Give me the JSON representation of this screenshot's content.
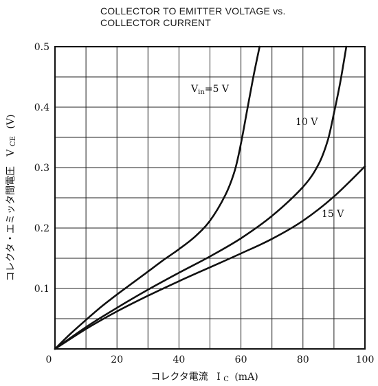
{
  "chart_data": {
    "type": "line",
    "title_lines": [
      "COLLECTOR TO EMITTER VOLTAGE vs.",
      "COLLECTOR CURRENT"
    ],
    "xlabel": {
      "text": "コレクタ電流",
      "symbol": "I",
      "subscript": "C",
      "unit": "(mA)"
    },
    "ylabel": {
      "text": "コレクタ・エミッタ間電圧",
      "symbol": "V",
      "subscript": "CE",
      "unit": "(V)"
    },
    "xlim": [
      0,
      100
    ],
    "ylim": [
      0,
      0.5
    ],
    "x_ticks": [
      0,
      20,
      40,
      60,
      80,
      100
    ],
    "x_tick_labels": [
      "0",
      "20",
      "40",
      "60",
      "80",
      "100"
    ],
    "y_ticks": [
      0.1,
      0.2,
      0.3,
      0.4,
      0.5
    ],
    "y_tick_labels": [
      "0.1",
      "0.2",
      "0.3",
      "0.4",
      "0.5"
    ],
    "y_origin_label": "0",
    "x_grid_step": 10,
    "y_grid_step": 0.05,
    "grid": true,
    "legend": "inline labels next to curves",
    "line_color": "#111111",
    "series": [
      {
        "label": "V_in=5 V",
        "label_parts": {
          "base": "V",
          "sub": "in",
          "rest": "=5 V"
        },
        "points": [
          [
            0,
            0
          ],
          [
            5,
            0.025
          ],
          [
            10,
            0.048
          ],
          [
            15,
            0.07
          ],
          [
            20,
            0.09
          ],
          [
            25,
            0.109
          ],
          [
            30,
            0.128
          ],
          [
            35,
            0.147
          ],
          [
            40,
            0.165
          ],
          [
            45,
            0.185
          ],
          [
            50,
            0.212
          ],
          [
            55,
            0.255
          ],
          [
            58,
            0.295
          ],
          [
            60,
            0.34
          ],
          [
            62,
            0.395
          ],
          [
            64,
            0.45
          ],
          [
            66,
            0.5
          ]
        ]
      },
      {
        "label": "10 V",
        "label_parts": {
          "base": "10 V",
          "sub": "",
          "rest": ""
        },
        "points": [
          [
            0,
            0
          ],
          [
            10,
            0.036
          ],
          [
            20,
            0.068
          ],
          [
            30,
            0.098
          ],
          [
            40,
            0.126
          ],
          [
            50,
            0.153
          ],
          [
            60,
            0.183
          ],
          [
            70,
            0.22
          ],
          [
            80,
            0.268
          ],
          [
            85,
            0.305
          ],
          [
            88,
            0.345
          ],
          [
            90,
            0.39
          ],
          [
            92,
            0.44
          ],
          [
            94,
            0.5
          ]
        ]
      },
      {
        "label": "15 V",
        "label_parts": {
          "base": "15 V",
          "sub": "",
          "rest": ""
        },
        "points": [
          [
            0,
            0
          ],
          [
            10,
            0.033
          ],
          [
            20,
            0.062
          ],
          [
            30,
            0.088
          ],
          [
            40,
            0.112
          ],
          [
            50,
            0.135
          ],
          [
            60,
            0.158
          ],
          [
            70,
            0.182
          ],
          [
            80,
            0.212
          ],
          [
            90,
            0.252
          ],
          [
            100,
            0.302
          ]
        ]
      }
    ]
  }
}
